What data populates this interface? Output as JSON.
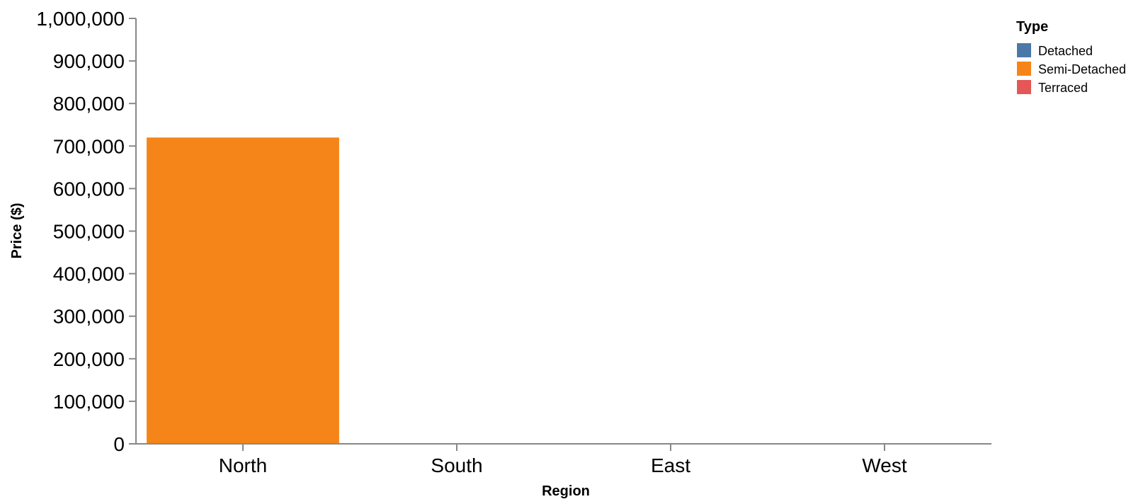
{
  "chart_data": {
    "type": "bar",
    "title": "",
    "xlabel": "Region",
    "ylabel": "Price ($)",
    "categories": [
      "North",
      "South",
      "East",
      "West"
    ],
    "ylim": [
      0,
      1000000
    ],
    "yticks": [
      "0",
      "100,000",
      "200,000",
      "300,000",
      "400,000",
      "500,000",
      "600,000",
      "700,000",
      "800,000",
      "900,000",
      "1,000,000"
    ],
    "ytick_values": [
      0,
      100000,
      200000,
      300000,
      400000,
      500000,
      600000,
      700000,
      800000,
      900000,
      1000000
    ],
    "series": [
      {
        "name": "Detached",
        "color": "#4c78a8",
        "values": [
          0,
          0,
          0,
          0
        ]
      },
      {
        "name": "Semi-Detached",
        "color": "#f58518",
        "values": [
          720000,
          0,
          0,
          0
        ]
      },
      {
        "name": "Terraced",
        "color": "#e45756",
        "values": [
          0,
          0,
          0,
          0
        ]
      }
    ],
    "legend": {
      "title": "Type",
      "position": "top-right"
    },
    "grid": false
  }
}
